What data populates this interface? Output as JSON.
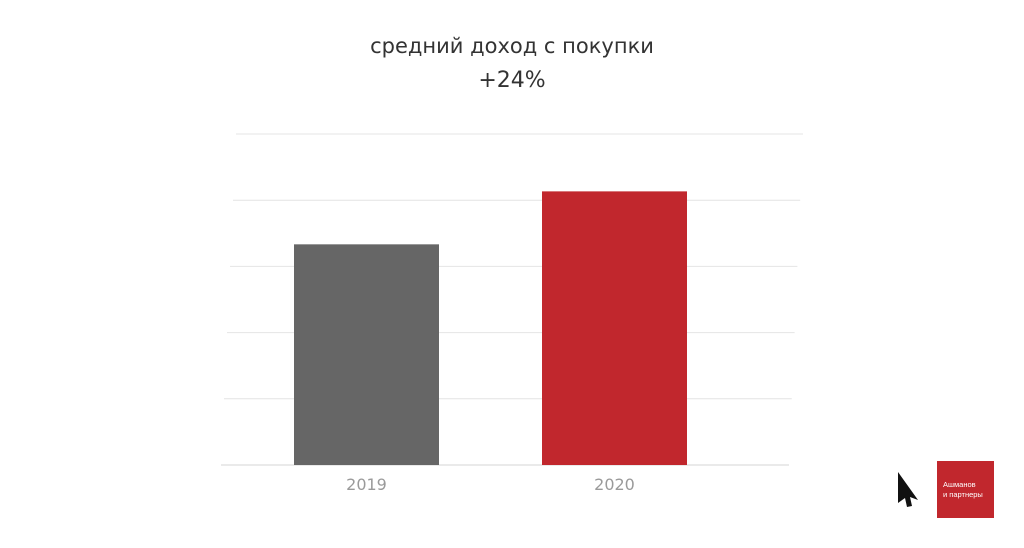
{
  "chart_data": {
    "type": "bar",
    "title": "средний доход с покупки",
    "subtitle": "+24%",
    "categories": [
      "2019",
      "2020"
    ],
    "values": [
      100,
      124
    ],
    "colors": [
      "#666666",
      "#c1272d"
    ],
    "ylim": [
      0,
      150
    ],
    "grid": true,
    "legend": "none"
  },
  "brand": {
    "line1": "Ашманов",
    "line2": "и партнеры",
    "color": "#c1272d",
    "icon": "cursor-logo-icon"
  }
}
